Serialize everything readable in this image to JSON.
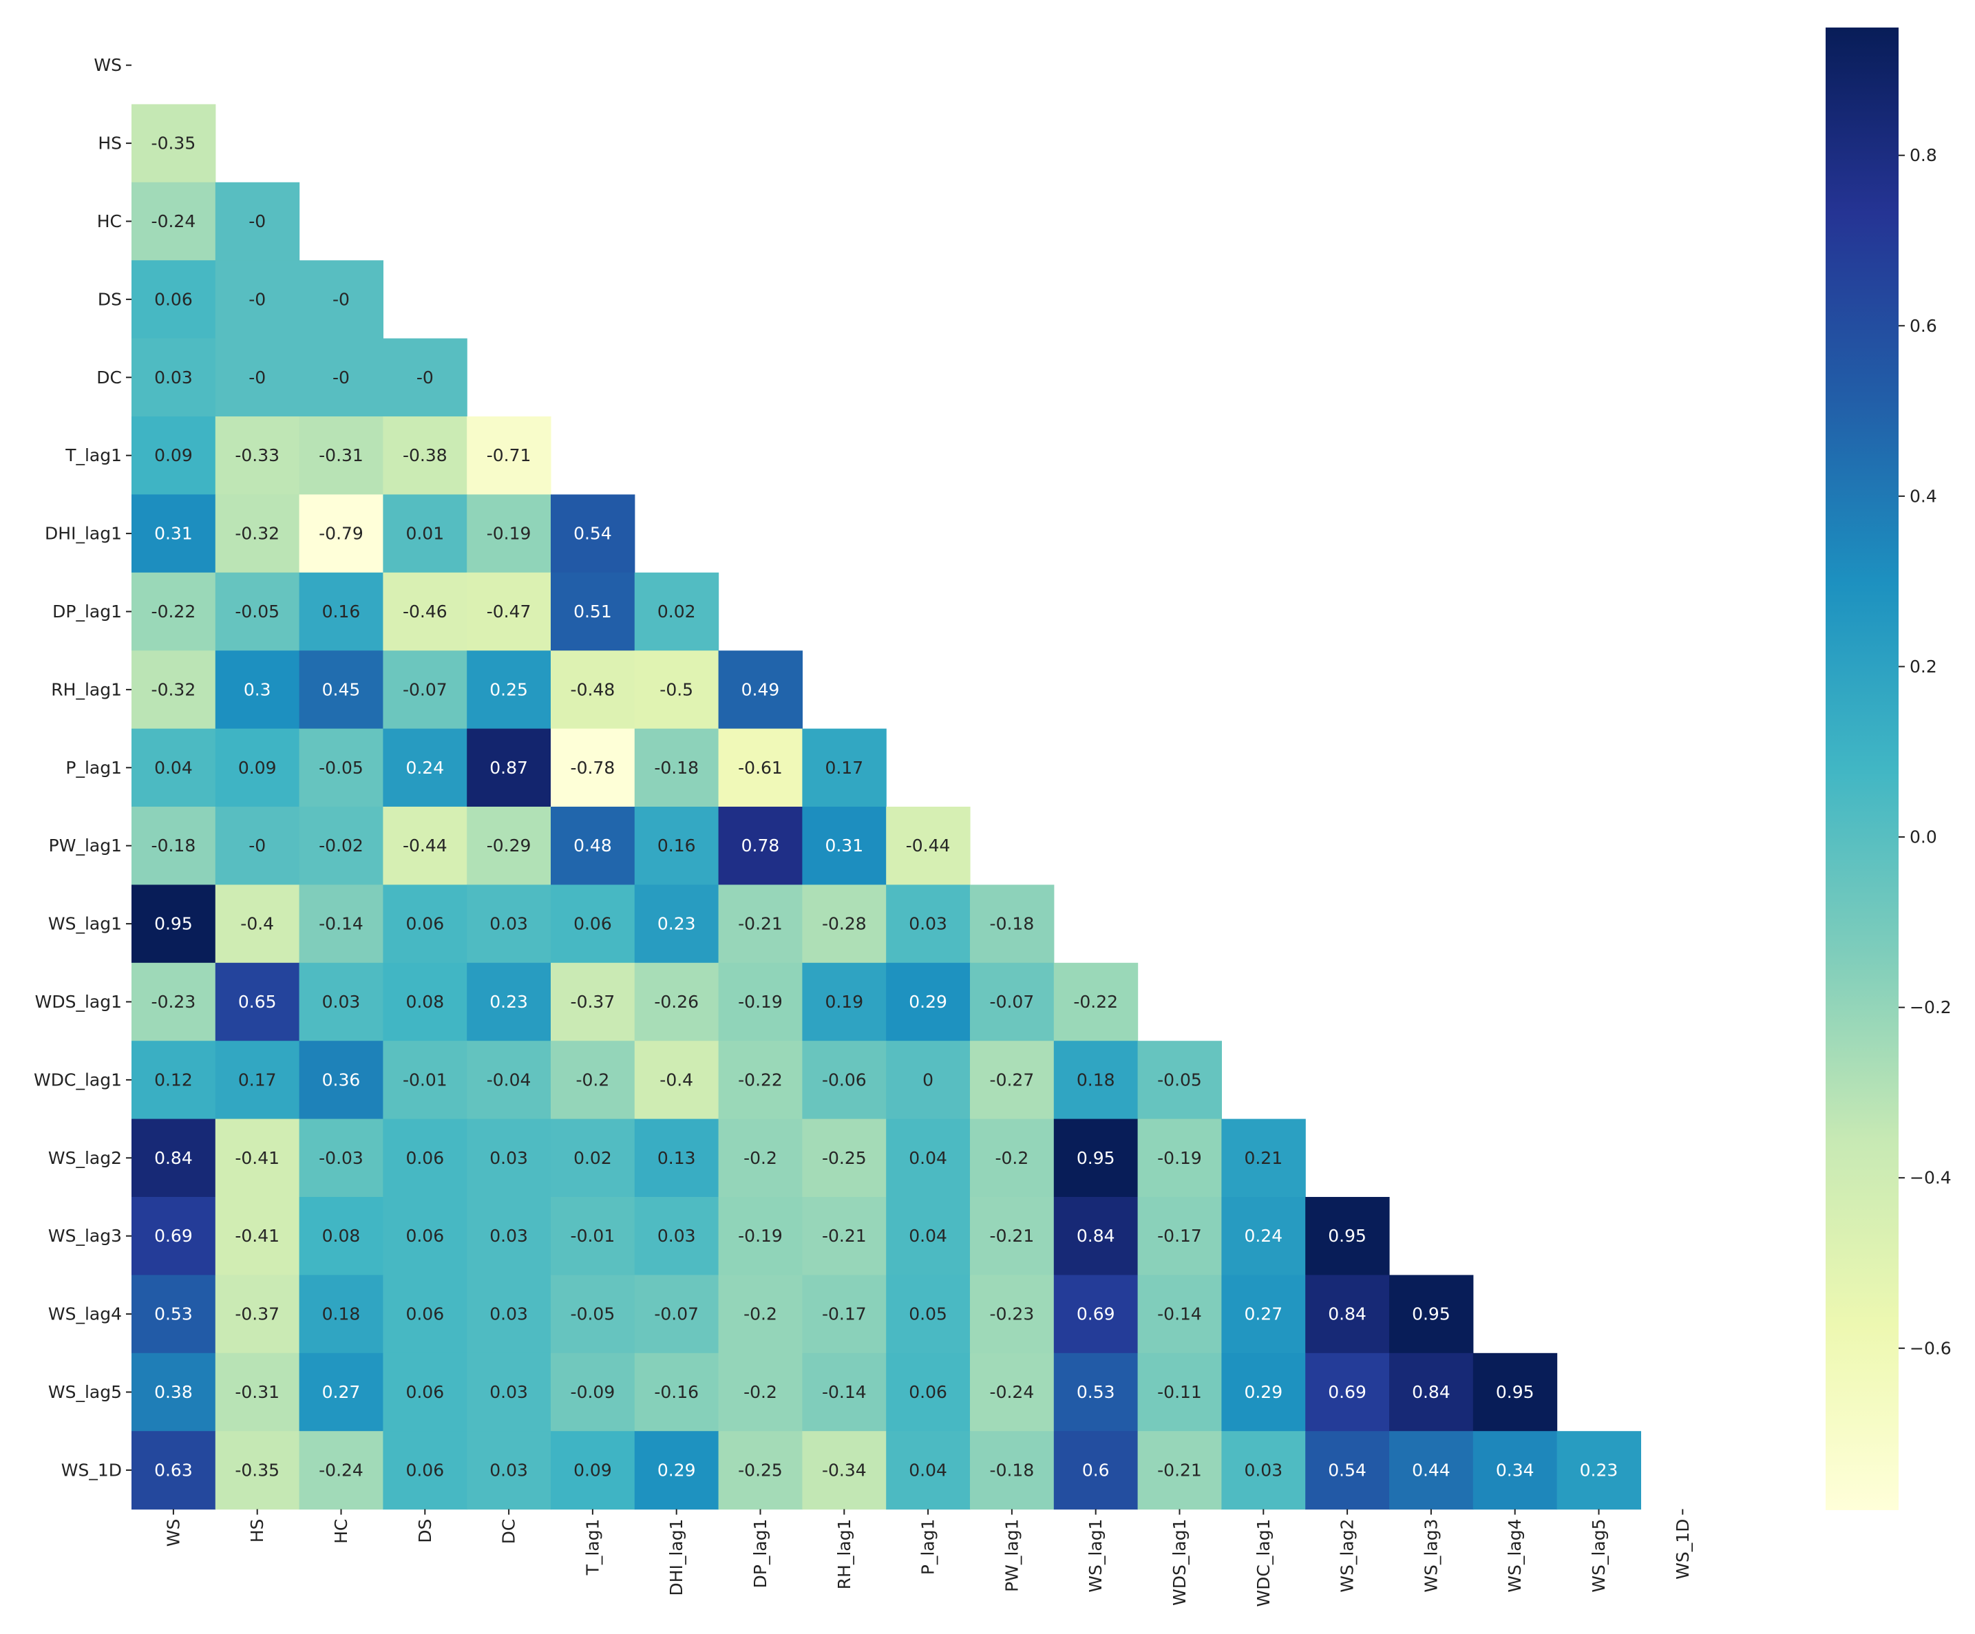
{
  "chart_data": {
    "type": "heatmap",
    "title": "",
    "xlabel": "",
    "ylabel": "",
    "mask": "upper-triangle-including-diagonal",
    "labels": [
      "WS",
      "HS",
      "HC",
      "DS",
      "DC",
      "T_lag1",
      "DHI_lag1",
      "DP_lag1",
      "RH_lag1",
      "P_lag1",
      "PW_lag1",
      "WS_lag1",
      "WDS_lag1",
      "WDC_lag1",
      "WS_lag2",
      "WS_lag3",
      "WS_lag4",
      "WS_lag5",
      "WS_1D"
    ],
    "values": [
      [],
      [
        "-0.35"
      ],
      [
        "-0.24",
        "-0"
      ],
      [
        "0.06",
        "-0",
        "-0"
      ],
      [
        "0.03",
        "-0",
        "-0",
        "-0"
      ],
      [
        "0.09",
        "-0.33",
        "-0.31",
        "-0.38",
        "-0.71"
      ],
      [
        "0.31",
        "-0.32",
        "-0.79",
        "0.01",
        "-0.19",
        "0.54"
      ],
      [
        "-0.22",
        "-0.05",
        "0.16",
        "-0.46",
        "-0.47",
        "0.51",
        "0.02"
      ],
      [
        "-0.32",
        "0.3",
        "0.45",
        "-0.07",
        "0.25",
        "-0.48",
        "-0.5",
        "0.49"
      ],
      [
        "0.04",
        "0.09",
        "-0.05",
        "0.24",
        "0.87",
        "-0.78",
        "-0.18",
        "-0.61",
        "0.17"
      ],
      [
        "-0.18",
        "-0",
        "-0.02",
        "-0.44",
        "-0.29",
        "0.48",
        "0.16",
        "0.78",
        "0.31",
        "-0.44"
      ],
      [
        "0.95",
        "-0.4",
        "-0.14",
        "0.06",
        "0.03",
        "0.06",
        "0.23",
        "-0.21",
        "-0.28",
        "0.03",
        "-0.18"
      ],
      [
        "-0.23",
        "0.65",
        "0.03",
        "0.08",
        "0.23",
        "-0.37",
        "-0.26",
        "-0.19",
        "0.19",
        "0.29",
        "-0.07",
        "-0.22"
      ],
      [
        "0.12",
        "0.17",
        "0.36",
        "-0.01",
        "-0.04",
        "-0.2",
        "-0.4",
        "-0.22",
        "-0.06",
        "0",
        "-0.27",
        "0.18",
        "-0.05"
      ],
      [
        "0.84",
        "-0.41",
        "-0.03",
        "0.06",
        "0.03",
        "0.02",
        "0.13",
        "-0.2",
        "-0.25",
        "0.04",
        "-0.2",
        "0.95",
        "-0.19",
        "0.21"
      ],
      [
        "0.69",
        "-0.41",
        "0.08",
        "0.06",
        "0.03",
        "-0.01",
        "0.03",
        "-0.19",
        "-0.21",
        "0.04",
        "-0.21",
        "0.84",
        "-0.17",
        "0.24",
        "0.95"
      ],
      [
        "0.53",
        "-0.37",
        "0.18",
        "0.06",
        "0.03",
        "-0.05",
        "-0.07",
        "-0.2",
        "-0.17",
        "0.05",
        "-0.23",
        "0.69",
        "-0.14",
        "0.27",
        "0.84",
        "0.95"
      ],
      [
        "0.38",
        "-0.31",
        "0.27",
        "0.06",
        "0.03",
        "-0.09",
        "-0.16",
        "-0.2",
        "-0.14",
        "0.06",
        "-0.24",
        "0.53",
        "-0.11",
        "0.29",
        "0.69",
        "0.84",
        "0.95"
      ],
      [
        "0.63",
        "-0.35",
        "-0.24",
        "0.06",
        "0.03",
        "0.09",
        "0.29",
        "-0.25",
        "-0.34",
        "0.04",
        "-0.18",
        "0.6",
        "-0.21",
        "0.03",
        "0.54",
        "0.44",
        "0.34",
        "0.23"
      ]
    ],
    "colormap": "YlGnBu",
    "colorbar": {
      "min": -0.79,
      "max": 0.95,
      "ticks": [
        0.8,
        0.6,
        0.4,
        0.2,
        0.0,
        -0.2,
        -0.4,
        -0.6
      ],
      "tick_labels": [
        "0.8",
        "0.6",
        "0.4",
        "0.2",
        "0.0",
        "−0.2",
        "−0.4",
        "−0.6"
      ],
      "placement": "right"
    },
    "colors": {
      "yl_gn_bu": [
        "#ffffd9",
        "#edf8b1",
        "#c7e9b4",
        "#7fcdbb",
        "#41b6c4",
        "#1d91c0",
        "#225ea8",
        "#253494",
        "#081d58"
      ],
      "text_light": "#ffffff",
      "text_dark": "#262626",
      "axis": "#222222"
    }
  }
}
